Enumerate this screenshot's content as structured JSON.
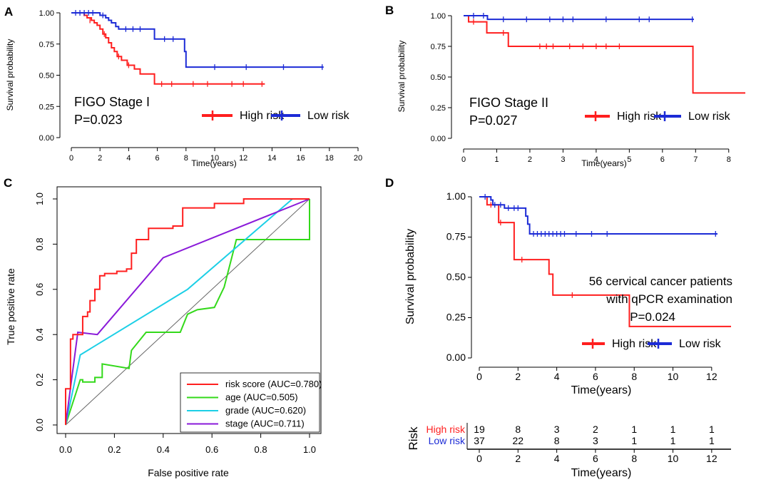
{
  "colors": {
    "high": "#ff1f1f",
    "low": "#1c2bd6",
    "roc_risk": "#ff1f1f",
    "roc_age": "#33d91a",
    "roc_grade": "#1ccfe6",
    "roc_stage": "#8a1ad9",
    "diag": "#666666"
  },
  "chart_data": [
    {
      "id": "A",
      "panel_label": "A",
      "type": "line",
      "subtype": "kaplan-meier",
      "xlabel": "Time(years)",
      "ylabel": "Survival probability",
      "xlim": [
        0,
        20
      ],
      "ylim": [
        0,
        1
      ],
      "xticks": [
        "0",
        "2",
        "4",
        "6",
        "8",
        "10",
        "12",
        "14",
        "16",
        "18",
        "20"
      ],
      "yticks": [
        "0.00",
        "0.25",
        "0.50",
        "0.75",
        "1.00"
      ],
      "annotation": [
        "FIGO Stage I",
        "P=0.023"
      ],
      "legend": [
        "High risk",
        "Low risk"
      ],
      "series": [
        {
          "name": "High risk",
          "color": "#ff1f1f",
          "steps": [
            [
              0,
              1
            ],
            [
              0.7,
              1
            ],
            [
              0.9,
              0.98
            ],
            [
              1.1,
              0.96
            ],
            [
              1.4,
              0.94
            ],
            [
              1.6,
              0.92
            ],
            [
              1.8,
              0.9
            ],
            [
              2,
              0.87
            ],
            [
              2.2,
              0.83
            ],
            [
              2.4,
              0.8
            ],
            [
              2.6,
              0.76
            ],
            [
              2.8,
              0.72
            ],
            [
              3,
              0.69
            ],
            [
              3.2,
              0.65
            ],
            [
              3.5,
              0.62
            ],
            [
              3.9,
              0.58
            ],
            [
              4.4,
              0.55
            ],
            [
              4.8,
              0.51
            ],
            [
              5.8,
              0.43
            ],
            [
              13.5,
              0.43
            ]
          ],
          "censors": [
            [
              1.3,
              0.94
            ],
            [
              2.3,
              0.83
            ],
            [
              3.3,
              0.65
            ],
            [
              4,
              0.58
            ],
            [
              6.3,
              0.43
            ],
            [
              7,
              0.43
            ],
            [
              8.5,
              0.43
            ],
            [
              9.5,
              0.43
            ],
            [
              11.2,
              0.43
            ],
            [
              12,
              0.43
            ],
            [
              13.3,
              0.43
            ]
          ]
        },
        {
          "name": "Low risk",
          "color": "#1c2bd6",
          "steps": [
            [
              0,
              1
            ],
            [
              1.8,
              1
            ],
            [
              2,
              0.98
            ],
            [
              2.4,
              0.96
            ],
            [
              2.6,
              0.94
            ],
            [
              2.8,
              0.92
            ],
            [
              3.1,
              0.89
            ],
            [
              3.3,
              0.87
            ],
            [
              5.6,
              0.87
            ],
            [
              5.8,
              0.79
            ],
            [
              7.8,
              0.79
            ],
            [
              7.9,
              0.69
            ],
            [
              8.0,
              0.565
            ],
            [
              17.6,
              0.565
            ]
          ],
          "censors": [
            [
              0.3,
              1
            ],
            [
              0.6,
              1
            ],
            [
              0.9,
              1
            ],
            [
              1.2,
              1
            ],
            [
              1.5,
              1
            ],
            [
              2.2,
              0.98
            ],
            [
              3.8,
              0.87
            ],
            [
              4.3,
              0.87
            ],
            [
              4.8,
              0.87
            ],
            [
              6.5,
              0.79
            ],
            [
              7.1,
              0.79
            ],
            [
              10,
              0.565
            ],
            [
              12.2,
              0.565
            ],
            [
              14.8,
              0.565
            ],
            [
              17.5,
              0.565
            ]
          ]
        }
      ]
    },
    {
      "id": "B",
      "panel_label": "B",
      "type": "line",
      "subtype": "kaplan-meier",
      "xlabel": "Time(years)",
      "ylabel": "Survival probability",
      "xlim": [
        0,
        8.5
      ],
      "ylim": [
        0,
        1
      ],
      "xticks": [
        "0",
        "1",
        "2",
        "3",
        "4",
        "5",
        "6",
        "7",
        "8"
      ],
      "yticks": [
        "0.00",
        "0.25",
        "0.50",
        "0.75",
        "1.00"
      ],
      "annotation": [
        "FIGO Stage II",
        "P=0.027"
      ],
      "legend": [
        "High risk",
        "Low risk"
      ],
      "series": [
        {
          "name": "High risk",
          "color": "#ff1f1f",
          "steps": [
            [
              0,
              1
            ],
            [
              0.15,
              0.95
            ],
            [
              0.7,
              0.86
            ],
            [
              1.35,
              0.75
            ],
            [
              6.9,
              0.75
            ],
            [
              6.92,
              0.37
            ],
            [
              8.5,
              0.37
            ]
          ],
          "censors": [
            [
              0.3,
              0.95
            ],
            [
              1.2,
              0.86
            ],
            [
              2.3,
              0.75
            ],
            [
              2.5,
              0.75
            ],
            [
              2.7,
              0.75
            ],
            [
              3.2,
              0.75
            ],
            [
              3.6,
              0.75
            ],
            [
              4,
              0.75
            ],
            [
              4.3,
              0.75
            ],
            [
              4.7,
              0.75
            ]
          ]
        },
        {
          "name": "Low risk",
          "color": "#1c2bd6",
          "steps": [
            [
              0,
              1
            ],
            [
              0.7,
              1
            ],
            [
              0.72,
              0.97
            ],
            [
              6.95,
              0.97
            ]
          ],
          "censors": [
            [
              0.3,
              1
            ],
            [
              0.6,
              1
            ],
            [
              1.2,
              0.97
            ],
            [
              1.9,
              0.97
            ],
            [
              2.6,
              0.97
            ],
            [
              3,
              0.97
            ],
            [
              3.3,
              0.97
            ],
            [
              4.3,
              0.97
            ],
            [
              5.3,
              0.97
            ],
            [
              5.6,
              0.97
            ],
            [
              6.9,
              0.97
            ]
          ]
        }
      ]
    },
    {
      "id": "C",
      "panel_label": "C",
      "type": "line",
      "subtype": "roc",
      "xlabel": "False positive rate",
      "ylabel": "True positive rate",
      "xlim": [
        0,
        1
      ],
      "ylim": [
        0,
        1
      ],
      "xticks": [
        "0.0",
        "0.2",
        "0.4",
        "0.6",
        "0.8",
        "1.0"
      ],
      "yticks": [
        "0.0",
        "0.2",
        "0.4",
        "0.6",
        "0.8",
        "1.0"
      ],
      "series": [
        {
          "name": "risk score (AUC=0.780)",
          "color": "#ff1f1f",
          "points": [
            [
              0,
              0
            ],
            [
              0,
              0.16
            ],
            [
              0.02,
              0.16
            ],
            [
              0.02,
              0.38
            ],
            [
              0.03,
              0.38
            ],
            [
              0.03,
              0.4
            ],
            [
              0.07,
              0.4
            ],
            [
              0.07,
              0.48
            ],
            [
              0.09,
              0.48
            ],
            [
              0.09,
              0.5
            ],
            [
              0.1,
              0.5
            ],
            [
              0.1,
              0.55
            ],
            [
              0.12,
              0.55
            ],
            [
              0.12,
              0.6
            ],
            [
              0.14,
              0.6
            ],
            [
              0.14,
              0.66
            ],
            [
              0.16,
              0.66
            ],
            [
              0.16,
              0.67
            ],
            [
              0.21,
              0.67
            ],
            [
              0.21,
              0.68
            ],
            [
              0.25,
              0.68
            ],
            [
              0.25,
              0.69
            ],
            [
              0.27,
              0.69
            ],
            [
              0.27,
              0.76
            ],
            [
              0.29,
              0.76
            ],
            [
              0.29,
              0.82
            ],
            [
              0.34,
              0.82
            ],
            [
              0.34,
              0.87
            ],
            [
              0.44,
              0.87
            ],
            [
              0.44,
              0.88
            ],
            [
              0.48,
              0.88
            ],
            [
              0.48,
              0.96
            ],
            [
              0.61,
              0.96
            ],
            [
              0.61,
              0.98
            ],
            [
              0.73,
              0.98
            ],
            [
              0.73,
              1
            ],
            [
              1,
              1
            ]
          ]
        },
        {
          "name": "age (AUC=0.505)",
          "color": "#33d91a",
          "points": [
            [
              0,
              0
            ],
            [
              0.06,
              0.2
            ],
            [
              0.07,
              0.2
            ],
            [
              0.07,
              0.19
            ],
            [
              0.12,
              0.19
            ],
            [
              0.12,
              0.21
            ],
            [
              0.15,
              0.21
            ],
            [
              0.15,
              0.27
            ],
            [
              0.26,
              0.25
            ],
            [
              0.27,
              0.33
            ],
            [
              0.33,
              0.41
            ],
            [
              0.47,
              0.41
            ],
            [
              0.5,
              0.49
            ],
            [
              0.54,
              0.51
            ],
            [
              0.61,
              0.52
            ],
            [
              0.65,
              0.61
            ],
            [
              0.7,
              0.82
            ],
            [
              1,
              0.82
            ],
            [
              1,
              1
            ]
          ]
        },
        {
          "name": "grade (AUC=0.620)",
          "color": "#1ccfe6",
          "points": [
            [
              0,
              0
            ],
            [
              0.06,
              0.31
            ],
            [
              0.5,
              0.6
            ],
            [
              0.93,
              1
            ],
            [
              1,
              1
            ]
          ]
        },
        {
          "name": "stage (AUC=0.711)",
          "color": "#8a1ad9",
          "points": [
            [
              0,
              0
            ],
            [
              0.05,
              0.41
            ],
            [
              0.13,
              0.4
            ],
            [
              0.4,
              0.74
            ],
            [
              1,
              1
            ]
          ]
        }
      ],
      "legend_position": "bottom-right",
      "reference_line": "diagonal"
    },
    {
      "id": "D",
      "panel_label": "D",
      "type": "line",
      "subtype": "kaplan-meier",
      "xlabel": "Time(years)",
      "ylabel": "Survival probability",
      "xlim": [
        0,
        13
      ],
      "ylim": [
        0,
        1
      ],
      "xticks": [
        "0",
        "2",
        "4",
        "6",
        "8",
        "10",
        "12"
      ],
      "yticks": [
        "0.00",
        "0.25",
        "0.50",
        "0.75",
        "1.00"
      ],
      "annotation": [
        "56 cervical cancer patients",
        "with qPCR examination",
        "P=0.024"
      ],
      "legend": [
        "High risk",
        "Low risk"
      ],
      "series": [
        {
          "name": "High risk",
          "color": "#ff1f1f",
          "steps": [
            [
              0,
              1
            ],
            [
              0.4,
              0.95
            ],
            [
              1,
              0.84
            ],
            [
              1.8,
              0.61
            ],
            [
              3.5,
              0.61
            ],
            [
              3.6,
              0.52
            ],
            [
              3.8,
              0.39
            ],
            [
              7.7,
              0.39
            ],
            [
              7.75,
              0.195
            ],
            [
              13,
              0.195
            ]
          ],
          "censors": [
            [
              0.6,
              0.95
            ],
            [
              1.1,
              0.84
            ],
            [
              2.2,
              0.61
            ],
            [
              4.8,
              0.39
            ]
          ]
        },
        {
          "name": "Low risk",
          "color": "#1c2bd6",
          "steps": [
            [
              0,
              1
            ],
            [
              0.5,
              1
            ],
            [
              0.6,
              0.98
            ],
            [
              0.7,
              0.95
            ],
            [
              1.2,
              0.95
            ],
            [
              1.3,
              0.93
            ],
            [
              2.3,
              0.93
            ],
            [
              2.4,
              0.88
            ],
            [
              2.5,
              0.83
            ],
            [
              2.6,
              0.77
            ],
            [
              12.3,
              0.77
            ]
          ],
          "censors": [
            [
              0.3,
              1
            ],
            [
              0.8,
              0.95
            ],
            [
              1.1,
              0.95
            ],
            [
              1.5,
              0.93
            ],
            [
              1.8,
              0.93
            ],
            [
              2,
              0.93
            ],
            [
              2.8,
              0.77
            ],
            [
              3,
              0.77
            ],
            [
              3.2,
              0.77
            ],
            [
              3.4,
              0.77
            ],
            [
              3.6,
              0.77
            ],
            [
              3.8,
              0.77
            ],
            [
              4,
              0.77
            ],
            [
              4.2,
              0.77
            ],
            [
              4.4,
              0.77
            ],
            [
              5,
              0.77
            ],
            [
              5.8,
              0.77
            ],
            [
              6.6,
              0.77
            ],
            [
              12.2,
              0.77
            ]
          ]
        }
      ],
      "risk_table": {
        "ylabel": "Risk",
        "xlabel": "Time(years)",
        "times": [
          "0",
          "2",
          "4",
          "6",
          "8",
          "10",
          "12"
        ],
        "rows": [
          {
            "name": "High risk",
            "color": "#ff1f1f",
            "counts": [
              "19",
              "8",
              "3",
              "2",
              "1",
              "1",
              "1"
            ]
          },
          {
            "name": "Low risk",
            "color": "#1c2bd6",
            "counts": [
              "37",
              "22",
              "8",
              "3",
              "1",
              "1",
              "1"
            ]
          }
        ]
      }
    }
  ]
}
